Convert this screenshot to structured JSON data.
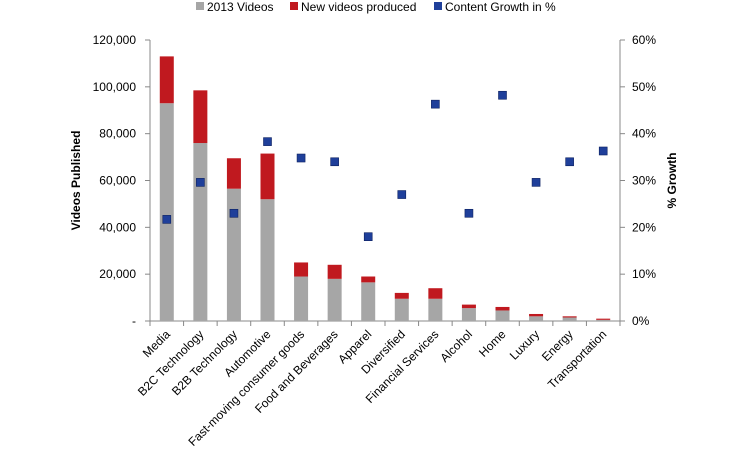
{
  "chart_data": {
    "type": "bar",
    "stacked": true,
    "categories": [
      "Media",
      "B2C Technology",
      "B2B Technology",
      "Automotive",
      "Fast-moving consumer goods",
      "Food and Beverages",
      "Apparel",
      "Diversified",
      "Financial Services",
      "Alcohol",
      "Home",
      "Luxury",
      "Energy",
      "Transportation"
    ],
    "series": [
      {
        "name": "2013 Videos",
        "axis": "left",
        "kind": "bar",
        "color": "#a6a6a6",
        "values": [
          93000,
          76000,
          56500,
          52000,
          19000,
          18000,
          16500,
          9500,
          9500,
          5500,
          4500,
          2000,
          1500,
          500
        ]
      },
      {
        "name": "New videos produced",
        "axis": "left",
        "kind": "bar",
        "color": "#c0191f",
        "values": [
          20000,
          22500,
          13000,
          19500,
          6000,
          6000,
          2500,
          2500,
          4500,
          1500,
          1500,
          1000,
          500,
          500
        ]
      },
      {
        "name": "Content Growth in %",
        "axis": "right",
        "kind": "scatter",
        "color": "#1f3f9a",
        "values": [
          21.7,
          29.6,
          23.0,
          38.3,
          34.8,
          34.0,
          18.0,
          27.0,
          46.3,
          23.0,
          48.2,
          29.6,
          34.0,
          36.3
        ]
      }
    ],
    "y_left": {
      "label": "Videos Published",
      "min": 0,
      "max": 120000,
      "ticks": [
        "-",
        "20,000",
        "40,000",
        "60,000",
        "80,000",
        "100,000",
        "120,000"
      ]
    },
    "y_right": {
      "label": "% Growth",
      "min": 0,
      "max": 60,
      "ticks": [
        "0%",
        "10%",
        "20%",
        "30%",
        "40%",
        "50%",
        "60%"
      ]
    },
    "legend_position": "top-center",
    "grid": false
  }
}
